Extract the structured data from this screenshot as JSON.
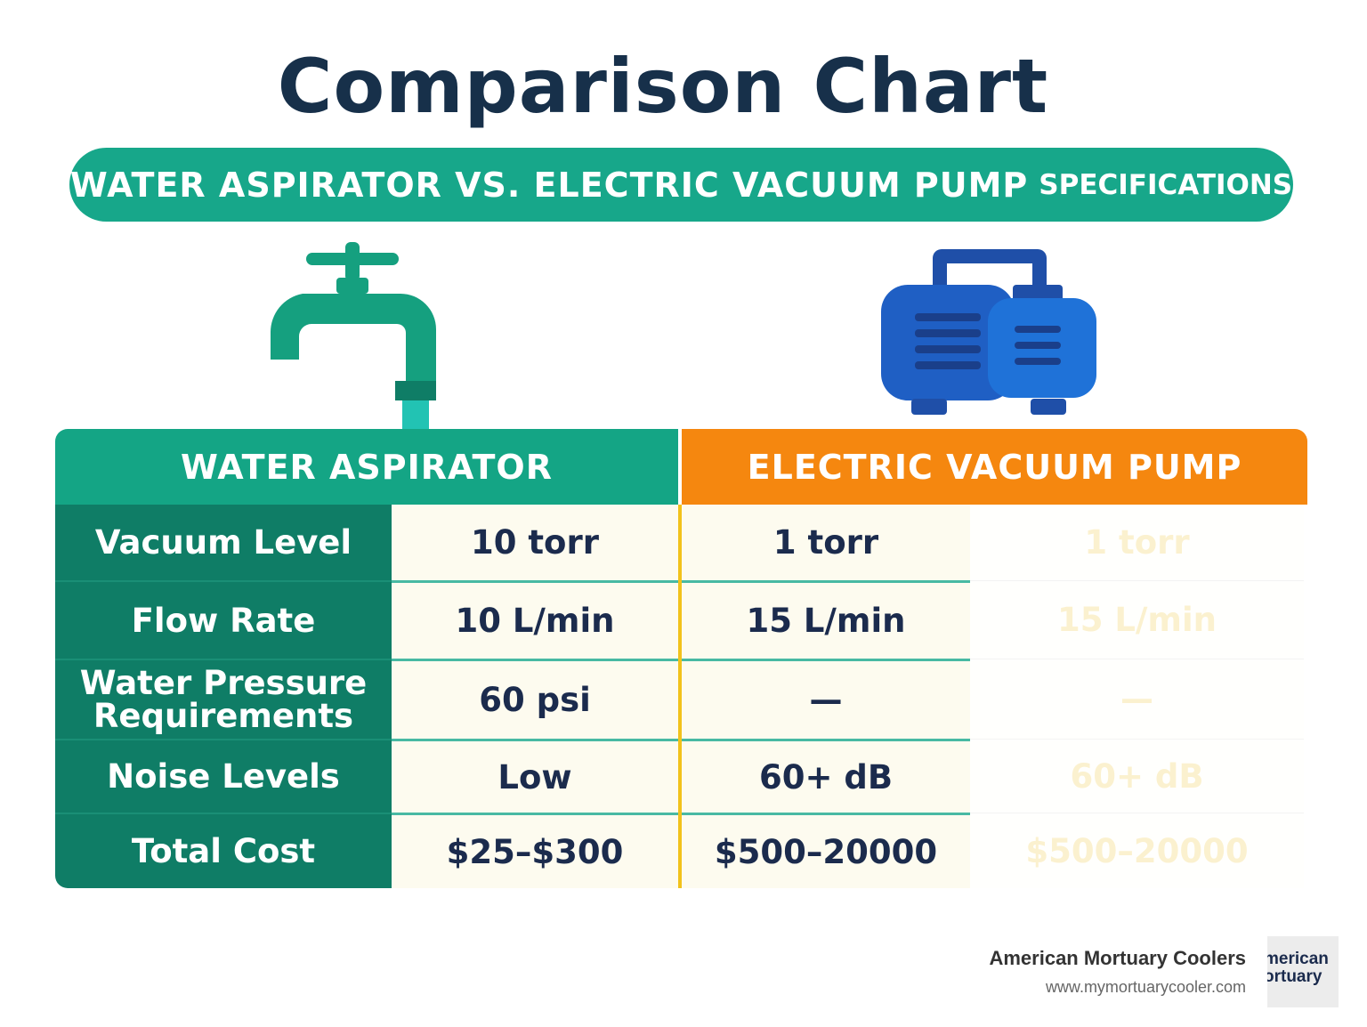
{
  "title": "Comparison Chart",
  "banner": {
    "main": "WATER ASPIRATOR VS. ELECTRIC VACUUM PUMP",
    "suffix": "SPECIFICATIONS"
  },
  "table": {
    "headers": [
      "WATER ASPIRATOR",
      "ELECTRIC VACUUM PUMP"
    ],
    "rows": [
      [
        "Vacuum Level",
        "10 torr",
        "1 torr"
      ],
      [
        "Flow Rate",
        "10 L/min",
        "15 L/min"
      ],
      [
        "Water Pressure Requirements",
        "60 psi",
        "—"
      ],
      [
        "Noise Levels",
        "Low",
        "60+ dB"
      ],
      [
        "Total Cost",
        "$25–$300",
        "$500–20000"
      ]
    ]
  },
  "footer": {
    "company": "American Mortuary Coolers",
    "url": "www.mymortuarycooler.com",
    "logo": [
      "merican",
      "ortuary"
    ]
  }
}
